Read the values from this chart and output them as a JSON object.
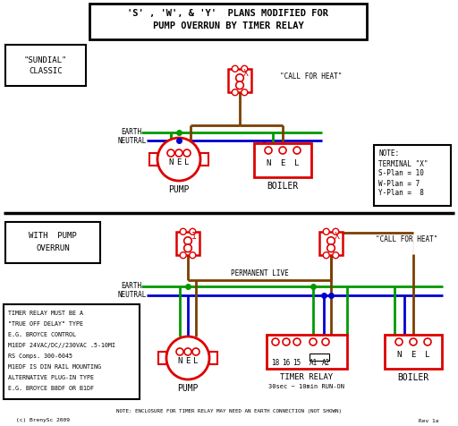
{
  "bg": "#ffffff",
  "red": "#dd0000",
  "green": "#009900",
  "blue": "#0000cc",
  "brown": "#7B3F00",
  "black": "#000000",
  "title1": "'S' , 'W', & 'Y'  PLANS MODIFIED FOR",
  "title2": "PUMP OVERRUN BY TIMER RELAY",
  "note_lines": [
    "NOTE:",
    "TERMINAL \"X\"",
    "S-Plan = 10",
    "W-Plan = 7",
    "Y-Plan =  8"
  ],
  "timer_note_lines": [
    "TIMER RELAY MUST BE A",
    "\"TRUE OFF DELAY\" TYPE",
    "E.G. BROYCE CONTROL",
    "M1EDF 24VAC/DC//230VAC .5-10MI",
    "RS Comps. 300-6045",
    "M1EDF IS DIN RAIL MOUNTING",
    "ALTERNATIVE PLUG-IN TYPE",
    "E.G. BROYCE B8DF OR B1DF"
  ],
  "bottom_note": "NOTE: ENCLOSURE FOR TIMER RELAY MAY NEED AN EARTH CONNECTION (NOT SHOWN)",
  "credit": "(c) BrenySc 2009",
  "rev": "Rev 1a"
}
